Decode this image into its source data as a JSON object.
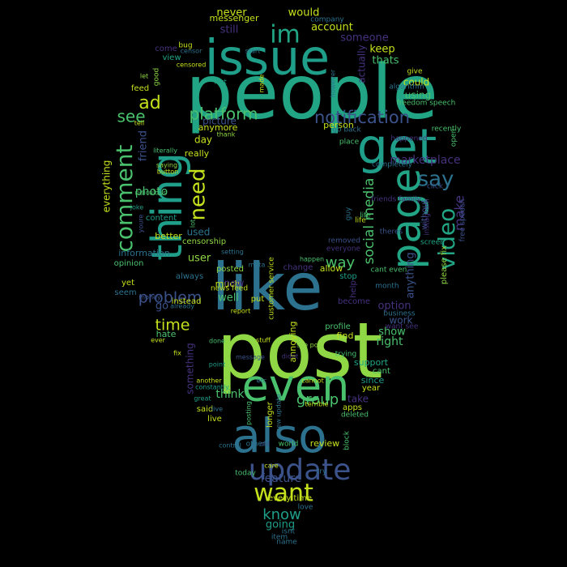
{
  "palette": {
    "yellow": "#c5e01c",
    "lime": "#8fd744",
    "green": "#4ac16d",
    "teal": "#21a585",
    "cyan": "#1f9e89",
    "blue": "#2c728e",
    "indigo": "#3b528b",
    "purple": "#46327e",
    "violet": "#440154"
  },
  "words": [
    "people",
    "post",
    "like",
    "issue",
    "get",
    "page",
    "thing",
    "also",
    "even",
    "update",
    "im",
    "say",
    "video",
    "comment",
    "need",
    "want",
    "platform",
    "notification",
    "social media",
    "ad",
    "see",
    "problem",
    "time",
    "user",
    "way",
    "group",
    "know",
    "feature",
    "make",
    "marketplace",
    "photo",
    "friend",
    "everything",
    "someone",
    "account",
    "would",
    "never",
    "messenger",
    "company",
    "still",
    "keep",
    "thats",
    "actually",
    "using",
    "could",
    "picture",
    "anymore",
    "day",
    "really",
    "used",
    "censorship",
    "information",
    "opinion",
    "content",
    "better",
    "posted",
    "much",
    "new",
    "well",
    "instead",
    "go",
    "hate",
    "something",
    "think",
    "said",
    "live",
    "review",
    "going",
    "every time",
    "option",
    "work",
    "right",
    "show",
    "profile",
    "find",
    "support",
    "cant",
    "since",
    "year",
    "take",
    "apps",
    "annoying",
    "help",
    "stop",
    "allow",
    "change",
    "always",
    "put",
    "yet",
    "seem",
    "view",
    "come",
    "feed",
    "good",
    "person",
    "go back",
    "place",
    "freedom speech",
    "algorithm",
    "recently",
    "open",
    "completely",
    "click",
    "without",
    "anything",
    "please fix",
    "become",
    "longer",
    "news feed",
    "customer service",
    "deleted",
    "block",
    "try",
    "love",
    "isnt",
    "item",
    "name",
    "today",
    "others",
    "world",
    "cant even",
    "month",
    "business",
    "friends family",
    "removed",
    "everyone",
    "life",
    "guy",
    "theres",
    "screen",
    "instagram",
    "free speech",
    "want see",
    "happened",
    "give",
    "life",
    "bug",
    "censor",
    "censored",
    "start",
    "first",
    "made",
    "however",
    "let",
    "tell",
    "thank",
    "saying",
    "button",
    "literally",
    "ridiculous",
    "joke",
    "youre",
    "lot",
    "setting",
    "meta",
    "happen",
    "report",
    "money",
    "already",
    "stuff",
    "done",
    "see post",
    "trying",
    "point",
    "ever",
    "fix",
    "another",
    "constantly",
    "great",
    "terrible",
    "message",
    "posting",
    "control",
    "care",
    "old",
    "new update",
    "cannot",
    "etc",
    "didnt",
    "live"
  ]
}
